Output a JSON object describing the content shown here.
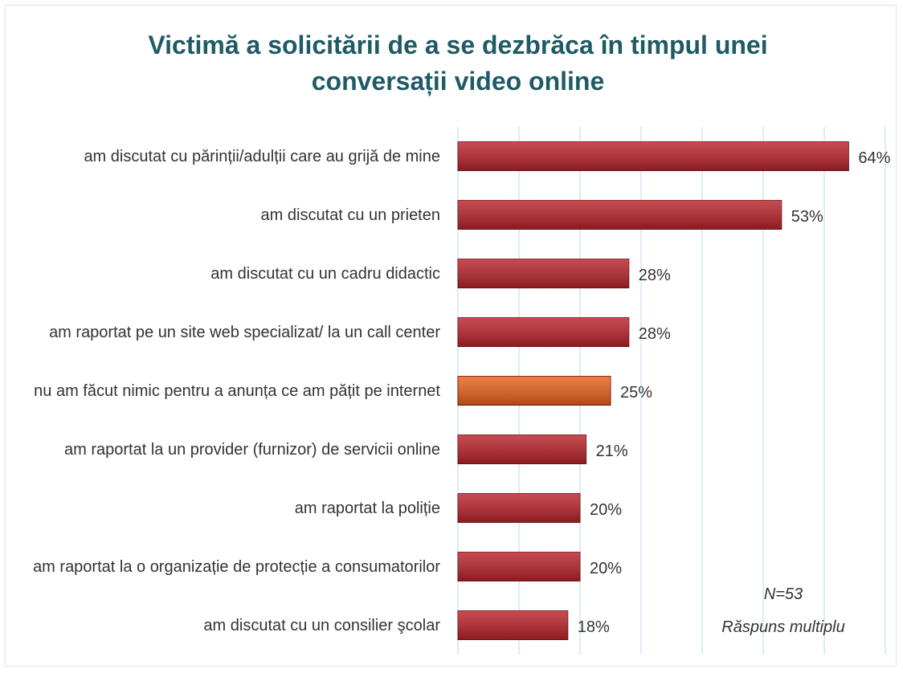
{
  "chart_data": {
    "type": "bar",
    "orientation": "horizontal",
    "title": "Victimă a solicitării de a se dezbrăca în timpul unei conversații video online",
    "categories": [
      "am discutat cu părinții/adulții care au grijă de mine",
      "am discutat cu un prieten",
      "am discutat cu un cadru didactic",
      "am raportat pe un site web specializat/ la un call center",
      "nu am făcut nimic pentru a anunța ce am pățit pe internet",
      "am raportat la un provider (furnizor) de servicii online",
      "am raportat la poliție",
      "am raportat la o organizație de protecție a consumatorilor",
      "am discutat cu un consilier şcolar"
    ],
    "values": [
      64,
      53,
      28,
      28,
      25,
      21,
      20,
      20,
      18
    ],
    "value_labels": [
      "64%",
      "53%",
      "28%",
      "28%",
      "25%",
      "21%",
      "20%",
      "20%",
      "18%"
    ],
    "colors": [
      "#b8232a",
      "#b8232a",
      "#b8232a",
      "#b8232a",
      "#e8621a",
      "#b8232a",
      "#b8232a",
      "#b8232a",
      "#b8232a"
    ],
    "xlim": [
      0,
      70
    ],
    "xticks": [
      0,
      10,
      20,
      30,
      40,
      50,
      60,
      70
    ],
    "grid": true,
    "annotations": [
      "N=53",
      "Răspuns multiplu"
    ]
  }
}
